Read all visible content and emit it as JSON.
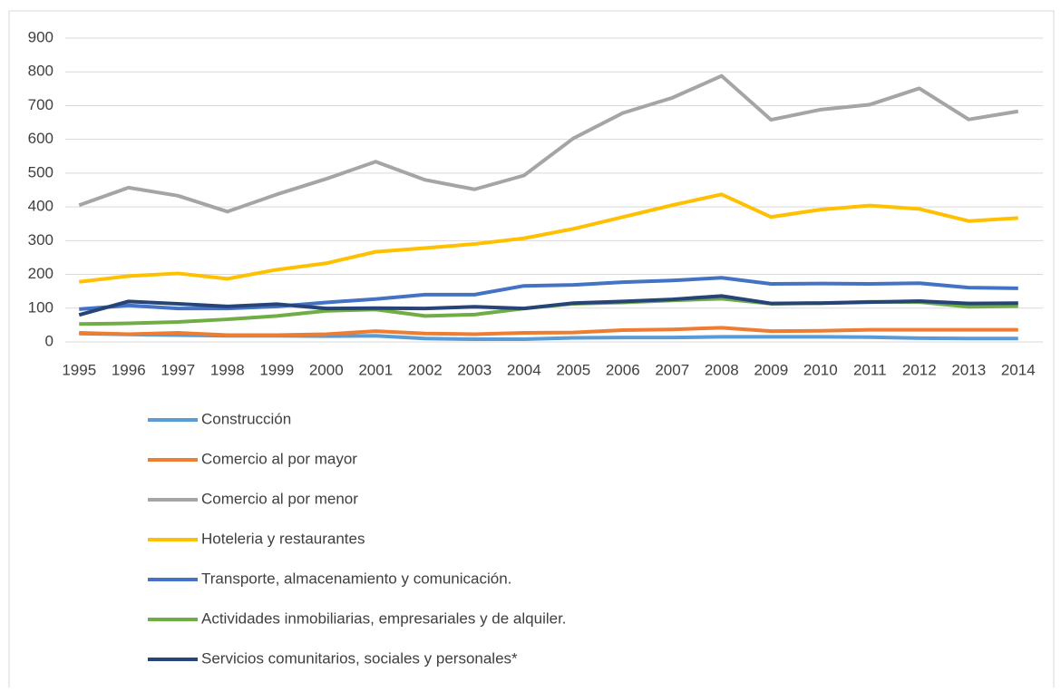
{
  "chart_data": {
    "type": "line",
    "categories": [
      "1995",
      "1996",
      "1997",
      "1998",
      "1999",
      "2000",
      "2001",
      "2002",
      "2003",
      "2004",
      "2005",
      "2006",
      "2007",
      "2008",
      "2009",
      "2010",
      "2011",
      "2012",
      "2013",
      "2014"
    ],
    "series": [
      {
        "name": "Construcción",
        "color": "#5b9bd5",
        "values": [
          25,
          22,
          20,
          18,
          18,
          17,
          18,
          10,
          8,
          8,
          12,
          13,
          13,
          15,
          15,
          15,
          14,
          11,
          10,
          10
        ]
      },
      {
        "name": "Comercio al por mayor",
        "color": "#ed7d31",
        "values": [
          27,
          23,
          27,
          20,
          20,
          23,
          32,
          25,
          23,
          27,
          28,
          35,
          37,
          42,
          32,
          33,
          36,
          36,
          36,
          36
        ]
      },
      {
        "name": "Comercio al por menor",
        "color": "#a5a5a5",
        "values": [
          405,
          457,
          433,
          386,
          437,
          483,
          534,
          480,
          452,
          493,
          603,
          678,
          723,
          788,
          658,
          688,
          703,
          751,
          659,
          683
        ]
      },
      {
        "name": "Hoteleria y restaurantes",
        "color": "#ffc000",
        "values": [
          178,
          195,
          203,
          187,
          214,
          233,
          267,
          278,
          290,
          307,
          335,
          370,
          405,
          437,
          370,
          392,
          404,
          394,
          358,
          367
        ]
      },
      {
        "name": "Transporte, almacenamiento  y comunicación.",
        "color": "#4472c4",
        "values": [
          97,
          108,
          99,
          99,
          105,
          117,
          127,
          140,
          140,
          166,
          169,
          177,
          182,
          190,
          172,
          173,
          172,
          174,
          161,
          159
        ]
      },
      {
        "name": "Actividades inmobiliarias, empresariales y de alquiler.",
        "color": "#70ad47",
        "values": [
          53,
          55,
          59,
          67,
          77,
          92,
          96,
          77,
          81,
          99,
          113,
          117,
          123,
          128,
          113,
          115,
          119,
          118,
          104,
          106
        ]
      },
      {
        "name": "Servicios comunitarios, sociales y personales*",
        "color": "#264478",
        "values": [
          80,
          120,
          113,
          105,
          112,
          99,
          100,
          99,
          104,
          99,
          115,
          120,
          126,
          136,
          114,
          115,
          118,
          121,
          114,
          115
        ]
      }
    ],
    "ylim": [
      0,
      900
    ],
    "yticks": [
      0,
      100,
      200,
      300,
      400,
      500,
      600,
      700,
      800,
      900
    ],
    "grid": true,
    "legend": "bottom"
  }
}
